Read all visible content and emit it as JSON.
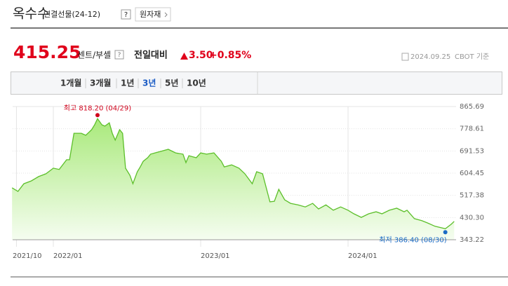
{
  "header": {
    "title": "옥수수",
    "subtitle": "연결선물(24-12)",
    "help": "?",
    "category_button": "원자재"
  },
  "quote": {
    "price": "415.25",
    "unit": "센트/부셸",
    "help": "?",
    "change_label": "전일대비",
    "change": "3.50",
    "change_percent": "+0.85%",
    "as_of": "2024.09.25",
    "basis": "CBOT 기준"
  },
  "tabs": {
    "items": [
      "1개월",
      "3개월",
      "1년",
      "3년",
      "5년",
      "10년"
    ],
    "selected": 3
  },
  "chart_data": {
    "type": "area",
    "x": [
      2021.72,
      2021.76,
      2021.8,
      2021.85,
      2021.9,
      2021.95,
      2022.0,
      2022.04,
      2022.09,
      2022.11,
      2022.14,
      2022.19,
      2022.22,
      2022.26,
      2022.28,
      2022.3,
      2022.33,
      2022.35,
      2022.38,
      2022.4,
      2022.42,
      2022.45,
      2022.47,
      2022.49,
      2022.52,
      2022.54,
      2022.57,
      2022.59,
      2022.61,
      2022.64,
      2022.66,
      2022.69,
      2022.73,
      2022.78,
      2022.83,
      2022.88,
      2022.9,
      2022.92,
      2022.97,
      2023.0,
      2023.04,
      2023.09,
      2023.14,
      2023.16,
      2023.21,
      2023.26,
      2023.3,
      2023.35,
      2023.38,
      2023.42,
      2023.47,
      2023.5,
      2023.53,
      2023.57,
      2023.61,
      2023.66,
      2023.71,
      2023.76,
      2023.8,
      2023.85,
      2023.9,
      2023.95,
      2024.0,
      2024.04,
      2024.09,
      2024.14,
      2024.19,
      2024.23,
      2024.28,
      2024.33,
      2024.38,
      2024.4,
      2024.45,
      2024.5,
      2024.54,
      2024.59,
      2024.66,
      2024.7,
      2024.72
    ],
    "series": [
      {
        "color": "#5cbf2a",
        "values": [
          547,
          533,
          563,
          574,
          591,
          602,
          624,
          619,
          657,
          657,
          761,
          761,
          753,
          775,
          794,
          818.2,
          794,
          789,
          802,
          761,
          734,
          775,
          761,
          624,
          596,
          563,
          610,
          629,
          651,
          665,
          679,
          684,
          690,
          698,
          684,
          679,
          646,
          673,
          665,
          684,
          679,
          684,
          651,
          629,
          637,
          624,
          602,
          563,
          610,
          602,
          492,
          494,
          541,
          500,
          486,
          480,
          472,
          486,
          464,
          480,
          459,
          472,
          459,
          445,
          431,
          445,
          453,
          445,
          459,
          467,
          453,
          459,
          426,
          418,
          409,
          396,
          386.4,
          404,
          415.25
        ]
      }
    ],
    "xlim": [
      2021.724,
      2024.733
    ],
    "xticks": [
      {
        "value": 2021.75,
        "label": "2021/10"
      },
      {
        "value": 2022,
        "label": "2022/01"
      },
      {
        "value": 2023,
        "label": "2023/01"
      },
      {
        "value": 2024,
        "label": "2024/01"
      }
    ],
    "ylim": [
      343.22,
      865.69
    ],
    "yticks": [
      343.22,
      {
        "value": 430.3,
        "label": "430.30"
      },
      517.38,
      604.45,
      691.53,
      778.61,
      865.69
    ],
    "annotations": [
      {
        "text": "최고 818.20 (04/29)",
        "point": 15,
        "color": "#d0021b"
      },
      {
        "text": "최저 386.40 (08/30)",
        "point": 76,
        "color": "#1a6bc4"
      }
    ],
    "grid": true
  }
}
